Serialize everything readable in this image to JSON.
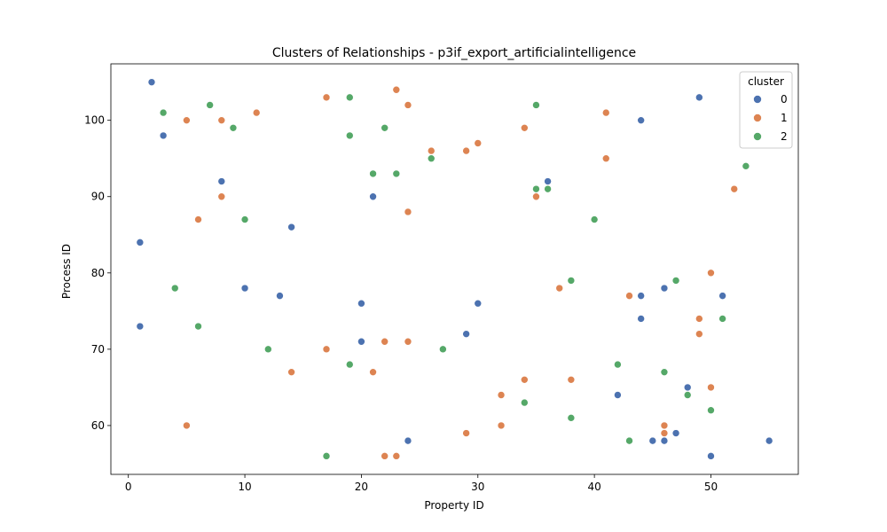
{
  "chart_data": {
    "type": "scatter",
    "title": "Clusters of Relationships - p3if_export_artificialintelligence",
    "xlabel": "Property ID",
    "ylabel": "Process ID",
    "xlim": [
      -1.5,
      57.5
    ],
    "ylim": [
      53.6,
      107.4
    ],
    "xticks": [
      0,
      10,
      20,
      30,
      40,
      50
    ],
    "yticks": [
      60,
      70,
      80,
      90,
      100
    ],
    "grid": false,
    "legend": {
      "title": "cluster",
      "position": "top-right"
    },
    "series": [
      {
        "name": "0",
        "color": "#4c72b0",
        "points": [
          [
            2,
            105
          ],
          [
            3,
            98
          ],
          [
            8,
            92
          ],
          [
            1,
            84
          ],
          [
            1,
            73
          ],
          [
            10,
            78
          ],
          [
            13,
            77
          ],
          [
            14,
            86
          ],
          [
            20,
            76
          ],
          [
            20,
            71
          ],
          [
            21,
            90
          ],
          [
            24,
            58
          ],
          [
            29,
            72
          ],
          [
            30,
            76
          ],
          [
            36,
            92
          ],
          [
            42,
            64
          ],
          [
            44,
            100
          ],
          [
            44,
            77
          ],
          [
            44,
            74
          ],
          [
            45,
            58
          ],
          [
            46,
            78
          ],
          [
            46,
            58
          ],
          [
            47,
            59
          ],
          [
            48,
            65
          ],
          [
            49,
            103
          ],
          [
            50,
            56
          ],
          [
            51,
            77
          ],
          [
            55,
            58
          ]
        ]
      },
      {
        "name": "1",
        "color": "#dd8452",
        "points": [
          [
            5,
            100
          ],
          [
            5,
            60
          ],
          [
            6,
            87
          ],
          [
            8,
            100
          ],
          [
            8,
            90
          ],
          [
            11,
            101
          ],
          [
            14,
            67
          ],
          [
            17,
            103
          ],
          [
            17,
            70
          ],
          [
            21,
            67
          ],
          [
            22,
            71
          ],
          [
            22,
            56
          ],
          [
            23,
            104
          ],
          [
            23,
            56
          ],
          [
            24,
            102
          ],
          [
            24,
            88
          ],
          [
            24,
            71
          ],
          [
            26,
            96
          ],
          [
            29,
            96
          ],
          [
            29,
            59
          ],
          [
            30,
            97
          ],
          [
            32,
            64
          ],
          [
            32,
            60
          ],
          [
            34,
            99
          ],
          [
            34,
            66
          ],
          [
            35,
            90
          ],
          [
            37,
            78
          ],
          [
            38,
            66
          ],
          [
            41,
            101
          ],
          [
            41,
            95
          ],
          [
            43,
            77
          ],
          [
            46,
            60
          ],
          [
            46,
            59
          ],
          [
            49,
            74
          ],
          [
            49,
            72
          ],
          [
            50,
            80
          ],
          [
            50,
            65
          ],
          [
            52,
            91
          ]
        ]
      },
      {
        "name": "2",
        "color": "#55a868",
        "points": [
          [
            3,
            101
          ],
          [
            4,
            78
          ],
          [
            6,
            73
          ],
          [
            7,
            102
          ],
          [
            9,
            99
          ],
          [
            10,
            87
          ],
          [
            12,
            70
          ],
          [
            17,
            56
          ],
          [
            19,
            103
          ],
          [
            19,
            98
          ],
          [
            19,
            68
          ],
          [
            21,
            93
          ],
          [
            22,
            99
          ],
          [
            23,
            93
          ],
          [
            26,
            95
          ],
          [
            27,
            70
          ],
          [
            34,
            63
          ],
          [
            35,
            102
          ],
          [
            35,
            91
          ],
          [
            36,
            91
          ],
          [
            38,
            79
          ],
          [
            38,
            61
          ],
          [
            40,
            87
          ],
          [
            42,
            68
          ],
          [
            43,
            58
          ],
          [
            46,
            67
          ],
          [
            47,
            79
          ],
          [
            48,
            64
          ],
          [
            50,
            62
          ],
          [
            51,
            74
          ],
          [
            53,
            94
          ]
        ]
      }
    ]
  }
}
